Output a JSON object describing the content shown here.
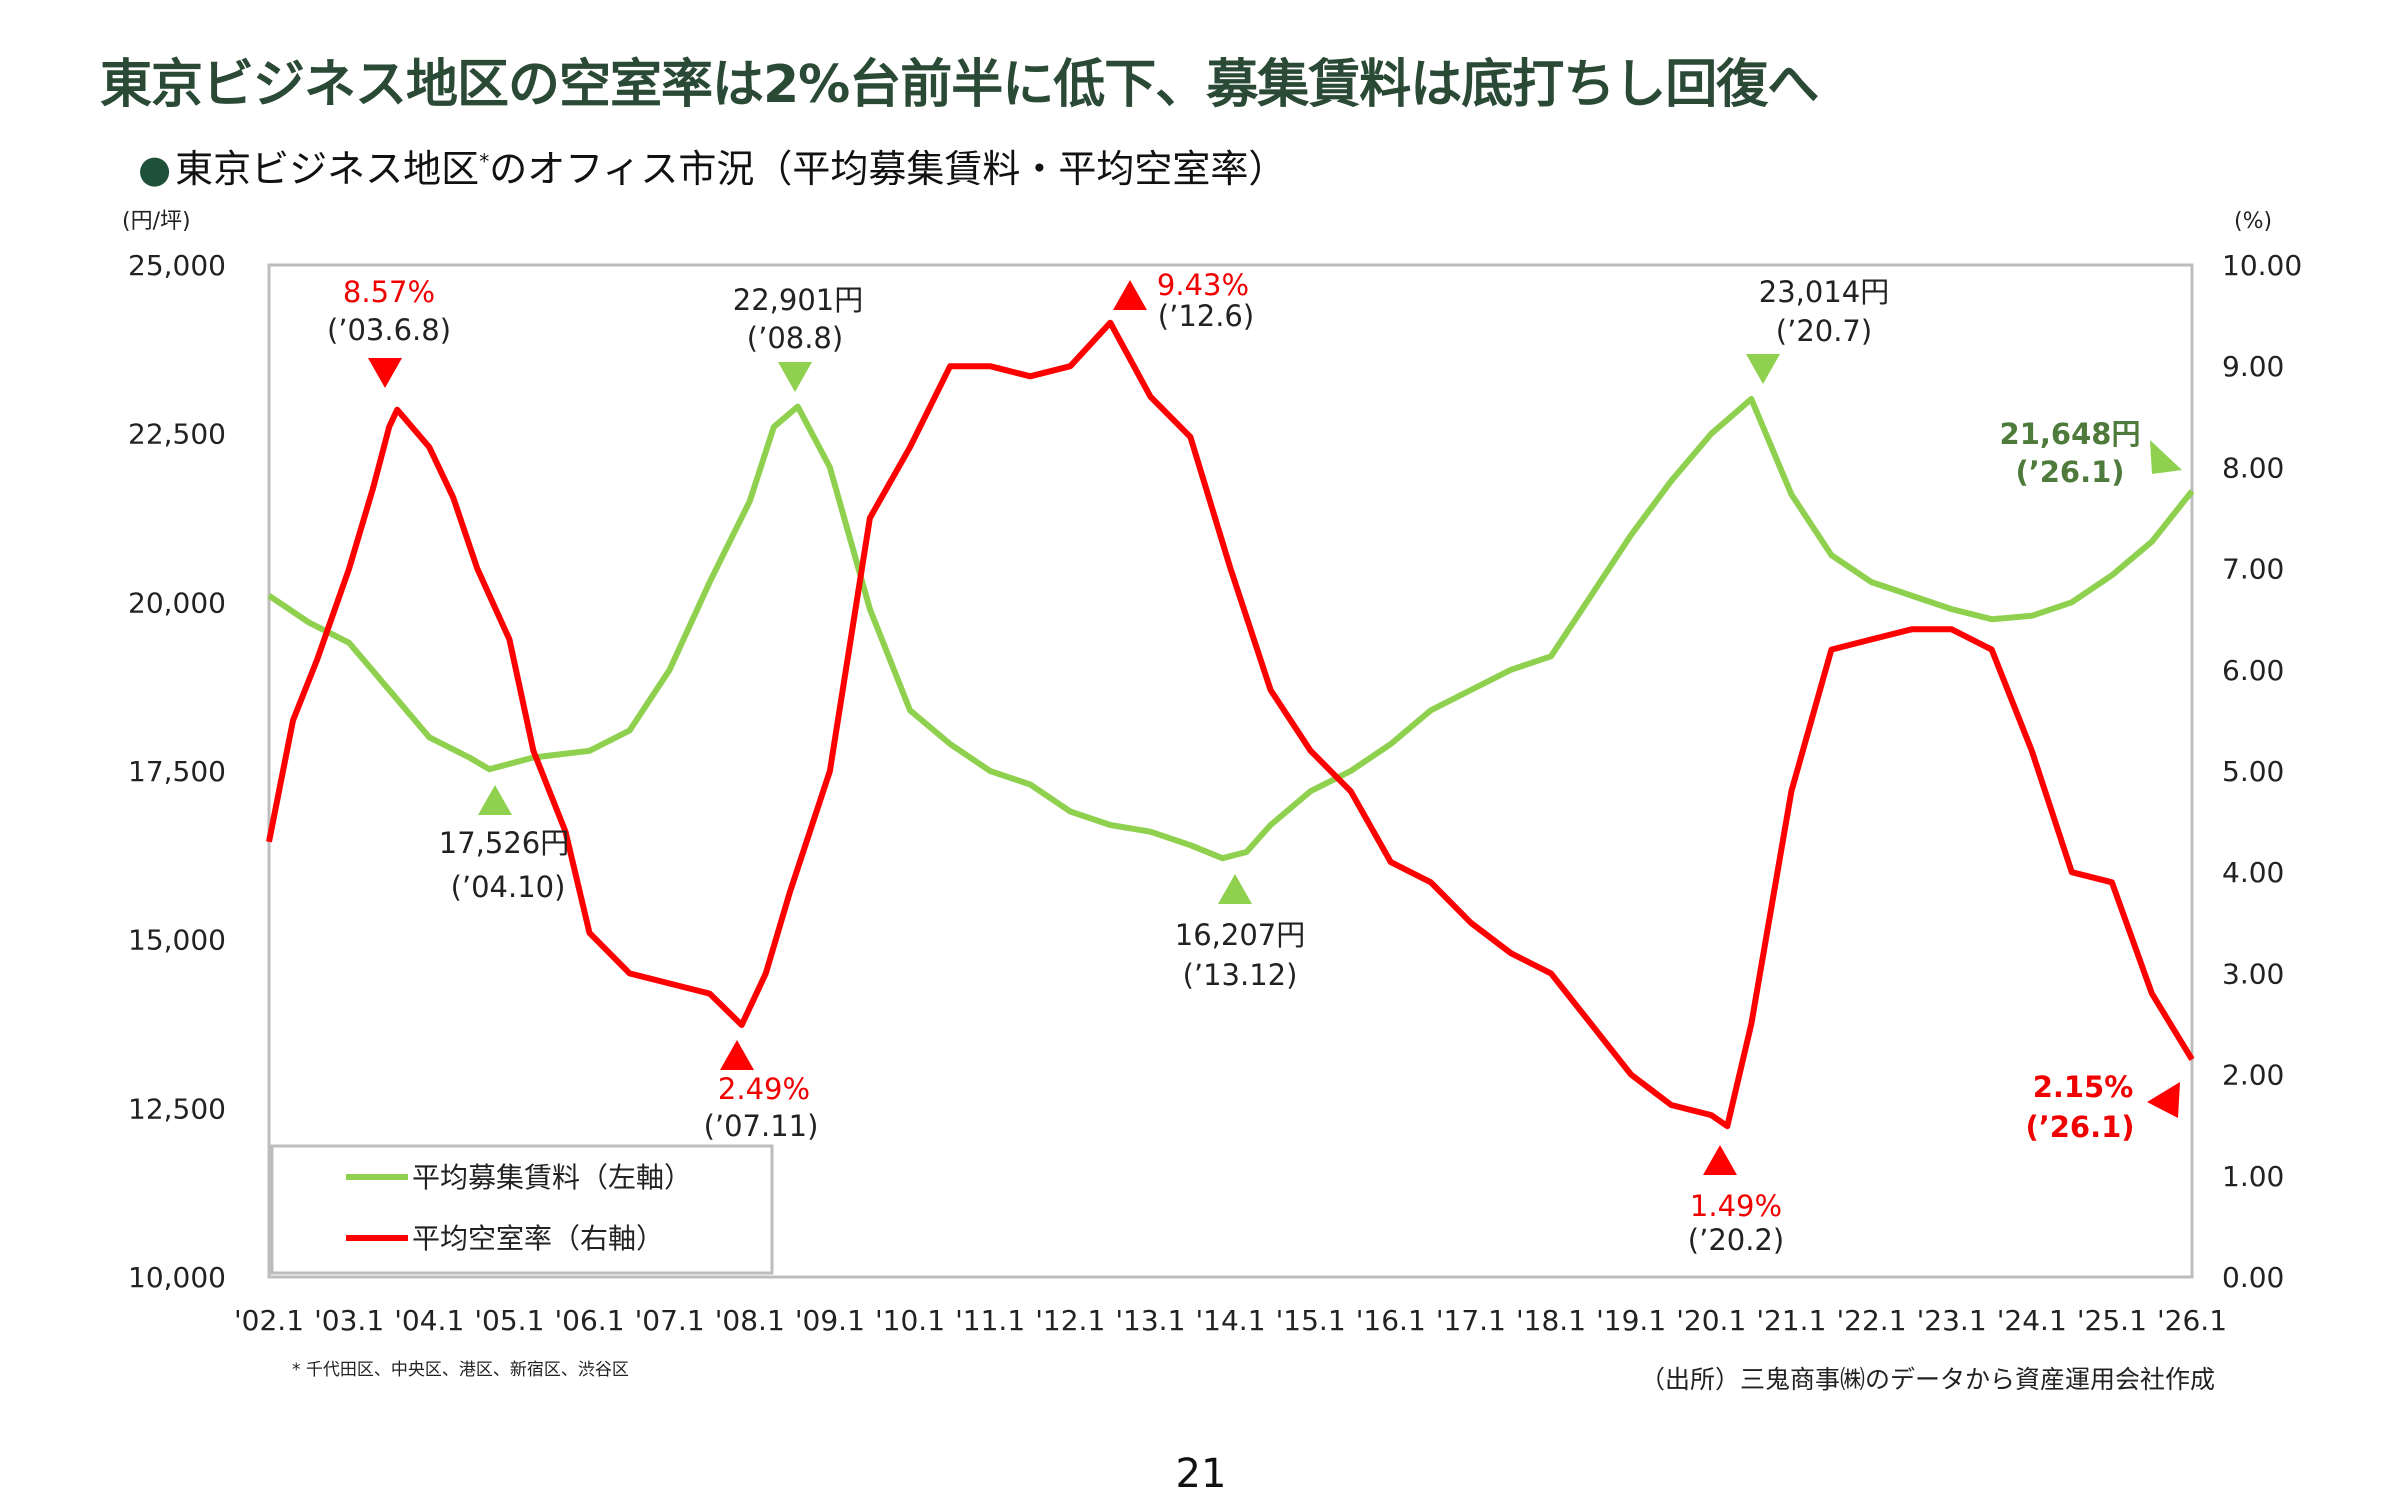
{
  "title": "東京ビジネス地区の空室率は2%台前半に低下、募集賃料は底打ちし回復へ",
  "subtitle": {
    "bullet": "●",
    "text": "東京ビジネス地区",
    "asterisk": "*",
    "text2": "のオフィス市況（平均募集賃料・平均空室率）"
  },
  "footnote": "* 千代田区、中央区、港区、新宿区、渋谷区",
  "source": "（出所）三鬼商事㈱のデータから資産運用会社作成",
  "page_number": "21",
  "colors": {
    "rent": "#8fd14f",
    "vacancy": "#ff0000",
    "title": "#2b4a36"
  },
  "chart_data": {
    "type": "line",
    "title": "東京ビジネス地区のオフィス市況（平均募集賃料・平均空室率）",
    "left_axis": {
      "unit": "(円/坪)",
      "range": [
        10000,
        25000
      ],
      "ticks": [
        "10,000",
        "12,500",
        "15,000",
        "17,500",
        "20,000",
        "22,500",
        "25,000"
      ]
    },
    "right_axis": {
      "unit": "(%)",
      "range": [
        0,
        10
      ],
      "ticks": [
        "0.00",
        "1.00",
        "2.00",
        "3.00",
        "4.00",
        "5.00",
        "6.00",
        "7.00",
        "8.00",
        "9.00",
        "10.00"
      ]
    },
    "x_range": [
      2002,
      2026
    ],
    "x_ticks": [
      "'02.1",
      "'03.1",
      "'04.1",
      "'05.1",
      "'06.1",
      "'07.1",
      "'08.1",
      "'09.1",
      "'10.1",
      "'11.1",
      "'12.1",
      "'13.1",
      "'14.1",
      "'15.1",
      "'16.1",
      "'17.1",
      "'18.1",
      "'19.1",
      "'20.1",
      "'21.1",
      "'22.1",
      "'23.1",
      "'24.1",
      "'25.1",
      "'26.1"
    ],
    "legend": {
      "placement": "bottom-left",
      "rent": "平均募集賃料（左軸）",
      "vacancy": "平均空室率（右軸）"
    },
    "series": [
      {
        "name": "平均募集賃料（左軸）",
        "axis": "left",
        "points": [
          [
            2002.0,
            20100
          ],
          [
            2002.5,
            19700
          ],
          [
            2003.0,
            19400
          ],
          [
            2003.5,
            18700
          ],
          [
            2004.0,
            18000
          ],
          [
            2004.5,
            17700
          ],
          [
            2004.75,
            17526
          ],
          [
            2005.3,
            17700
          ],
          [
            2006.0,
            17800
          ],
          [
            2006.5,
            18100
          ],
          [
            2007.0,
            19000
          ],
          [
            2007.5,
            20300
          ],
          [
            2008.0,
            21500
          ],
          [
            2008.3,
            22600
          ],
          [
            2008.6,
            22901
          ],
          [
            2009.0,
            22000
          ],
          [
            2009.5,
            19900
          ],
          [
            2010.0,
            18400
          ],
          [
            2010.5,
            17900
          ],
          [
            2011.0,
            17500
          ],
          [
            2011.5,
            17300
          ],
          [
            2012.0,
            16900
          ],
          [
            2012.5,
            16700
          ],
          [
            2013.0,
            16600
          ],
          [
            2013.5,
            16400
          ],
          [
            2013.9,
            16207
          ],
          [
            2014.2,
            16300
          ],
          [
            2014.5,
            16700
          ],
          [
            2015.0,
            17200
          ],
          [
            2015.5,
            17500
          ],
          [
            2016.0,
            17900
          ],
          [
            2016.5,
            18400
          ],
          [
            2017.0,
            18700
          ],
          [
            2017.5,
            19000
          ],
          [
            2018.0,
            19200
          ],
          [
            2018.5,
            20100
          ],
          [
            2019.0,
            21000
          ],
          [
            2019.5,
            21800
          ],
          [
            2020.0,
            22500
          ],
          [
            2020.5,
            23014
          ],
          [
            2021.0,
            21600
          ],
          [
            2021.5,
            20700
          ],
          [
            2022.0,
            20300
          ],
          [
            2022.5,
            20100
          ],
          [
            2023.0,
            19900
          ],
          [
            2023.5,
            19750
          ],
          [
            2024.0,
            19800
          ],
          [
            2024.5,
            20000
          ],
          [
            2025.0,
            20400
          ],
          [
            2025.5,
            20900
          ],
          [
            2026.0,
            21648
          ]
        ]
      },
      {
        "name": "平均空室率（右軸）",
        "axis": "right",
        "points": [
          [
            2002.0,
            4.3
          ],
          [
            2002.3,
            5.5
          ],
          [
            2002.6,
            6.1
          ],
          [
            2003.0,
            7.0
          ],
          [
            2003.3,
            7.8
          ],
          [
            2003.5,
            8.4
          ],
          [
            2003.6,
            8.57
          ],
          [
            2004.0,
            8.2
          ],
          [
            2004.3,
            7.7
          ],
          [
            2004.6,
            7.0
          ],
          [
            2005.0,
            6.3
          ],
          [
            2005.3,
            5.2
          ],
          [
            2005.7,
            4.4
          ],
          [
            2006.0,
            3.4
          ],
          [
            2006.5,
            3.0
          ],
          [
            2007.0,
            2.9
          ],
          [
            2007.5,
            2.8
          ],
          [
            2007.9,
            2.49
          ],
          [
            2008.2,
            3.0
          ],
          [
            2008.5,
            3.8
          ],
          [
            2009.0,
            5.0
          ],
          [
            2009.2,
            6.0
          ],
          [
            2009.5,
            7.5
          ],
          [
            2010.0,
            8.2
          ],
          [
            2010.5,
            9.0
          ],
          [
            2011.0,
            9.0
          ],
          [
            2011.5,
            8.9
          ],
          [
            2012.0,
            9.0
          ],
          [
            2012.5,
            9.43
          ],
          [
            2013.0,
            8.7
          ],
          [
            2013.5,
            8.3
          ],
          [
            2014.0,
            7.0
          ],
          [
            2014.5,
            5.8
          ],
          [
            2015.0,
            5.2
          ],
          [
            2015.5,
            4.8
          ],
          [
            2016.0,
            4.1
          ],
          [
            2016.5,
            3.9
          ],
          [
            2017.0,
            3.5
          ],
          [
            2017.5,
            3.2
          ],
          [
            2018.0,
            3.0
          ],
          [
            2018.5,
            2.5
          ],
          [
            2019.0,
            2.0
          ],
          [
            2019.5,
            1.7
          ],
          [
            2020.0,
            1.6
          ],
          [
            2020.2,
            1.49
          ],
          [
            2020.5,
            2.5
          ],
          [
            2021.0,
            4.8
          ],
          [
            2021.5,
            6.2
          ],
          [
            2022.0,
            6.3
          ],
          [
            2022.5,
            6.4
          ],
          [
            2023.0,
            6.4
          ],
          [
            2023.5,
            6.2
          ],
          [
            2024.0,
            5.2
          ],
          [
            2024.5,
            4.0
          ],
          [
            2025.0,
            3.9
          ],
          [
            2025.5,
            2.8
          ],
          [
            2026.0,
            2.15
          ]
        ]
      }
    ],
    "annotations": {
      "vac_peak_0306": {
        "value": "8.57%",
        "date": "(’03.6.8)"
      },
      "rent_peak_0808": {
        "value": "22,901円",
        "date": "(’08.8)"
      },
      "vac_peak_1206": {
        "value": "9.43%",
        "date": "(’12.6)"
      },
      "rent_peak_2007": {
        "value": "23,014円",
        "date": "(’20.7)"
      },
      "rent_latest_2601": {
        "value": "21,648円",
        "date": "(’26.1)"
      },
      "rent_low_0410": {
        "value": "17,526円",
        "date": "(’04.10)"
      },
      "rent_low_1312": {
        "value": "16,207円",
        "date": "(’13.12)"
      },
      "vac_low_0711": {
        "value": "2.49%",
        "date": "(’07.11)"
      },
      "vac_low_2002": {
        "value": "1.49%",
        "date": "(’20.2)"
      },
      "vac_latest_2601": {
        "value": "2.15%",
        "date": "(’26.1)"
      }
    }
  }
}
